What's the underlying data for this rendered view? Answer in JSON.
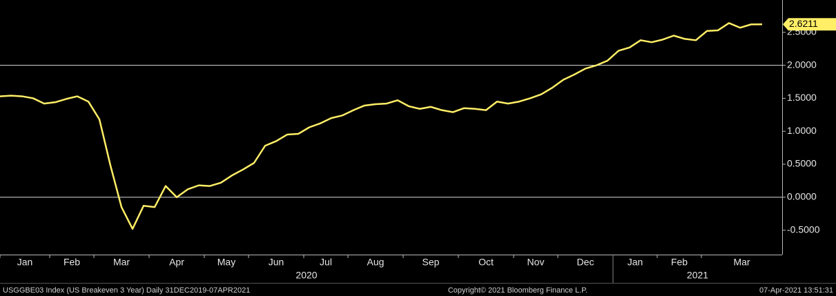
{
  "chart_data": {
    "type": "line",
    "categories": [
      "Jan",
      null,
      null,
      null,
      null,
      "Feb",
      null,
      null,
      null,
      "Mar",
      null,
      null,
      null,
      null,
      "Apr",
      null,
      null,
      null,
      null,
      "May",
      null,
      null,
      null,
      "Jun",
      null,
      null,
      null,
      null,
      "Jul",
      null,
      null,
      null,
      "Aug",
      null,
      null,
      null,
      null,
      "Sep",
      null,
      null,
      null,
      null,
      "Oct",
      null,
      null,
      null,
      null,
      "Nov",
      null,
      null,
      null,
      "Dec",
      null,
      null,
      null,
      null,
      "Jan",
      null,
      null,
      null,
      "Feb",
      null,
      null,
      null,
      "Mar",
      null,
      null,
      null,
      null,
      null
    ],
    "series": [
      {
        "name": "USGGBE03 Index (US Breakeven 3 Year)",
        "color": "#ffee66",
        "values": [
          1.53,
          1.54,
          1.53,
          1.5,
          1.42,
          1.44,
          1.49,
          1.53,
          1.45,
          1.18,
          0.48,
          -0.15,
          -0.48,
          -0.13,
          -0.15,
          0.17,
          0.0,
          0.12,
          0.18,
          0.17,
          0.22,
          0.33,
          0.42,
          0.52,
          0.78,
          0.85,
          0.95,
          0.96,
          1.06,
          1.12,
          1.2,
          1.24,
          1.32,
          1.39,
          1.41,
          1.42,
          1.47,
          1.38,
          1.34,
          1.37,
          1.32,
          1.29,
          1.35,
          1.34,
          1.32,
          1.45,
          1.42,
          1.45,
          1.5,
          1.56,
          1.66,
          1.78,
          1.86,
          1.95,
          2.0,
          2.07,
          2.22,
          2.27,
          2.38,
          2.35,
          2.39,
          2.45,
          2.4,
          2.38,
          2.52,
          2.53,
          2.64,
          2.57,
          2.62,
          2.6211
        ],
        "last_value_label": "2.6211"
      }
    ],
    "year_labels": [
      "2020",
      "2021"
    ],
    "ylim": [
      -0.87,
      2.99
    ],
    "yticks": [
      {
        "value": -0.5,
        "label": "-0.5000"
      },
      {
        "value": 0,
        "label": "0.0000"
      },
      {
        "value": 0.5,
        "label": "0.5000"
      },
      {
        "value": 1,
        "label": "1.0000"
      },
      {
        "value": 1.5,
        "label": "1.5000"
      },
      {
        "value": 2,
        "label": "2.0000"
      },
      {
        "value": 2.5,
        "label": "2.5000"
      }
    ],
    "reference_lines": [
      0,
      2
    ],
    "footer": {
      "left": "USGGBE03 Index (US Breakeven 3 Year)  Daily 31DEC2019-07APR2021",
      "center": "Copyright© 2021 Bloomberg Finance L.P.",
      "right": "07-Apr-2021 13:51:31"
    }
  }
}
